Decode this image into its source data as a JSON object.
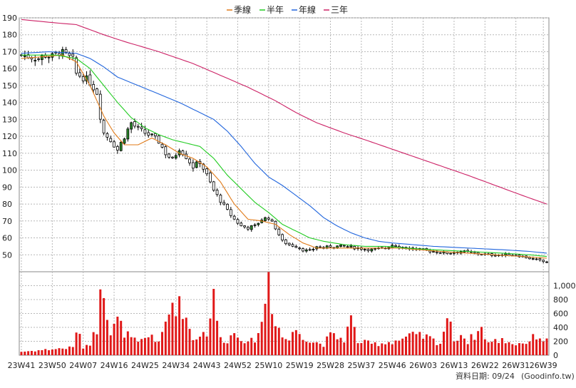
{
  "legend": [
    {
      "name": "季線",
      "color": "#e07b1a"
    },
    {
      "name": "半年",
      "color": "#22cc22"
    },
    {
      "name": "年線",
      "color": "#2266dd"
    },
    {
      "name": "三年",
      "color": "#cc2266"
    }
  ],
  "footer": {
    "date_label": "資料日期: 09/24",
    "source": "(Goodinfo.tw)"
  },
  "chart_data": {
    "type": "candlestick_with_volume",
    "price_axis": {
      "ylim": [
        40,
        190
      ],
      "ticks": [
        50,
        60,
        70,
        80,
        90,
        100,
        110,
        120,
        130,
        140,
        150,
        160,
        170,
        180,
        190
      ]
    },
    "volume_axis": {
      "ylim": [
        0,
        1200
      ],
      "ticks": [
        0,
        200,
        400,
        600,
        800,
        1000
      ],
      "tick_labels": [
        "0",
        "200",
        "400",
        "600",
        "800",
        "1,000"
      ]
    },
    "x_labels": [
      {
        "label": "23W41",
        "week": 0
      },
      {
        "label": "23W50",
        "week": 9
      },
      {
        "label": "24W07",
        "week": 18
      },
      {
        "label": "24W16",
        "week": 27
      },
      {
        "label": "24W25",
        "week": 36
      },
      {
        "label": "24W34",
        "week": 45
      },
      {
        "label": "24W43",
        "week": 54
      },
      {
        "label": "24W52",
        "week": 63
      },
      {
        "label": "25W10",
        "week": 72
      },
      {
        "label": "25W19",
        "week": 81
      },
      {
        "label": "25W28",
        "week": 90
      },
      {
        "label": "25W37",
        "week": 99
      },
      {
        "label": "25W46",
        "week": 108
      },
      {
        "label": "26W03",
        "week": 117
      },
      {
        "label": "26W13",
        "week": 126
      },
      {
        "label": "26W22",
        "week": 135
      },
      {
        "label": "26W31",
        "week": 144
      },
      {
        "label": "26W39",
        "week": 152
      }
    ],
    "weeks": 154,
    "close_anchors": [
      [
        0,
        168
      ],
      [
        3,
        167
      ],
      [
        5,
        166
      ],
      [
        7,
        168
      ],
      [
        9,
        167
      ],
      [
        11,
        170
      ],
      [
        13,
        168
      ],
      [
        15,
        165
      ],
      [
        16,
        157
      ],
      [
        18,
        155
      ],
      [
        20,
        152
      ],
      [
        22,
        146
      ],
      [
        23,
        132
      ],
      [
        24,
        122
      ],
      [
        26,
        118
      ],
      [
        28,
        112
      ],
      [
        30,
        120
      ],
      [
        32,
        128
      ],
      [
        34,
        124
      ],
      [
        36,
        122
      ],
      [
        38,
        120
      ],
      [
        40,
        117
      ],
      [
        42,
        110
      ],
      [
        44,
        106
      ],
      [
        46,
        113
      ],
      [
        48,
        108
      ],
      [
        50,
        102
      ],
      [
        52,
        105
      ],
      [
        54,
        97
      ],
      [
        56,
        88
      ],
      [
        58,
        82
      ],
      [
        60,
        76
      ],
      [
        62,
        71
      ],
      [
        64,
        67
      ],
      [
        66,
        66
      ],
      [
        68,
        67
      ],
      [
        70,
        71
      ],
      [
        72,
        72
      ],
      [
        74,
        66
      ],
      [
        76,
        58
      ],
      [
        78,
        56
      ],
      [
        80,
        55
      ],
      [
        82,
        53
      ],
      [
        84,
        52
      ],
      [
        86,
        55
      ],
      [
        88,
        54
      ],
      [
        90,
        55
      ],
      [
        94,
        55
      ],
      [
        98,
        54
      ],
      [
        102,
        53
      ],
      [
        106,
        54
      ],
      [
        108,
        56
      ],
      [
        112,
        54
      ],
      [
        116,
        53
      ],
      [
        120,
        52
      ],
      [
        124,
        51
      ],
      [
        128,
        52
      ],
      [
        132,
        51
      ],
      [
        136,
        50
      ],
      [
        140,
        50
      ],
      [
        144,
        50
      ],
      [
        148,
        48
      ],
      [
        152,
        46
      ],
      [
        153,
        46
      ]
    ],
    "volume_anchors": [
      [
        0,
        50
      ],
      [
        10,
        90
      ],
      [
        15,
        110
      ],
      [
        16,
        380
      ],
      [
        18,
        120
      ],
      [
        20,
        180
      ],
      [
        22,
        380
      ],
      [
        23,
        1150
      ],
      [
        24,
        1050
      ],
      [
        25,
        620
      ],
      [
        26,
        300
      ],
      [
        28,
        500
      ],
      [
        30,
        330
      ],
      [
        32,
        240
      ],
      [
        34,
        170
      ],
      [
        36,
        230
      ],
      [
        38,
        300
      ],
      [
        40,
        160
      ],
      [
        44,
        760
      ],
      [
        47,
        680
      ],
      [
        50,
        230
      ],
      [
        52,
        300
      ],
      [
        54,
        330
      ],
      [
        56,
        820
      ],
      [
        58,
        230
      ],
      [
        60,
        220
      ],
      [
        62,
        320
      ],
      [
        64,
        270
      ],
      [
        66,
        160
      ],
      [
        68,
        240
      ],
      [
        70,
        440
      ],
      [
        72,
        1180
      ],
      [
        73,
        720
      ],
      [
        74,
        520
      ],
      [
        76,
        260
      ],
      [
        78,
        220
      ],
      [
        80,
        380
      ],
      [
        84,
        200
      ],
      [
        88,
        160
      ],
      [
        90,
        280
      ],
      [
        94,
        230
      ],
      [
        96,
        520
      ],
      [
        98,
        200
      ],
      [
        102,
        160
      ],
      [
        106,
        180
      ],
      [
        110,
        220
      ],
      [
        114,
        280
      ],
      [
        118,
        260
      ],
      [
        122,
        170
      ],
      [
        124,
        560
      ],
      [
        126,
        230
      ],
      [
        128,
        300
      ],
      [
        130,
        200
      ],
      [
        134,
        380
      ],
      [
        136,
        180
      ],
      [
        140,
        220
      ],
      [
        144,
        160
      ],
      [
        148,
        200
      ],
      [
        150,
        290
      ],
      [
        153,
        200
      ]
    ],
    "ma_lines": [
      {
        "name": "季線",
        "color": "#e07b1a",
        "points": [
          [
            0,
            166
          ],
          [
            6,
            167
          ],
          [
            12,
            168
          ],
          [
            16,
            164
          ],
          [
            20,
            150
          ],
          [
            24,
            132
          ],
          [
            27,
            122
          ],
          [
            30,
            115
          ],
          [
            34,
            115
          ],
          [
            38,
            119
          ],
          [
            42,
            115
          ],
          [
            46,
            110
          ],
          [
            50,
            107
          ],
          [
            54,
            102
          ],
          [
            58,
            93
          ],
          [
            62,
            80
          ],
          [
            66,
            71
          ],
          [
            70,
            70
          ],
          [
            74,
            68
          ],
          [
            78,
            62
          ],
          [
            82,
            57
          ],
          [
            86,
            54
          ],
          [
            90,
            54
          ],
          [
            94,
            54
          ],
          [
            98,
            54
          ],
          [
            104,
            54
          ],
          [
            110,
            54
          ],
          [
            116,
            53
          ],
          [
            122,
            52
          ],
          [
            130,
            51
          ],
          [
            138,
            50
          ],
          [
            146,
            49
          ],
          [
            153,
            48
          ]
        ]
      },
      {
        "name": "半年",
        "color": "#22cc22",
        "points": [
          [
            0,
            168
          ],
          [
            10,
            168
          ],
          [
            16,
            166
          ],
          [
            20,
            160
          ],
          [
            24,
            150
          ],
          [
            28,
            140
          ],
          [
            32,
            131
          ],
          [
            36,
            125
          ],
          [
            40,
            121
          ],
          [
            44,
            118
          ],
          [
            48,
            116
          ],
          [
            52,
            114
          ],
          [
            56,
            107
          ],
          [
            60,
            97
          ],
          [
            64,
            89
          ],
          [
            68,
            81
          ],
          [
            72,
            75
          ],
          [
            76,
            68
          ],
          [
            80,
            64
          ],
          [
            84,
            60
          ],
          [
            88,
            58
          ],
          [
            94,
            56
          ],
          [
            100,
            55
          ],
          [
            106,
            55
          ],
          [
            112,
            54
          ],
          [
            120,
            53
          ],
          [
            130,
            52
          ],
          [
            140,
            51
          ],
          [
            148,
            50
          ],
          [
            153,
            49
          ]
        ]
      },
      {
        "name": "年線",
        "color": "#2266dd",
        "points": [
          [
            0,
            169
          ],
          [
            8,
            170
          ],
          [
            16,
            169
          ],
          [
            20,
            166
          ],
          [
            24,
            161
          ],
          [
            28,
            155
          ],
          [
            34,
            150
          ],
          [
            40,
            145
          ],
          [
            46,
            140
          ],
          [
            52,
            134
          ],
          [
            56,
            130
          ],
          [
            60,
            123
          ],
          [
            64,
            114
          ],
          [
            68,
            104
          ],
          [
            72,
            96
          ],
          [
            76,
            91
          ],
          [
            80,
            85
          ],
          [
            84,
            79
          ],
          [
            88,
            72
          ],
          [
            92,
            67
          ],
          [
            96,
            63
          ],
          [
            100,
            60
          ],
          [
            104,
            58
          ],
          [
            108,
            57
          ],
          [
            114,
            56
          ],
          [
            120,
            55
          ],
          [
            130,
            54
          ],
          [
            140,
            53
          ],
          [
            148,
            52
          ],
          [
            153,
            51
          ]
        ]
      },
      {
        "name": "三年",
        "color": "#cc2266",
        "points": [
          [
            0,
            189
          ],
          [
            10,
            187
          ],
          [
            16,
            186
          ],
          [
            20,
            183
          ],
          [
            24,
            180
          ],
          [
            30,
            176
          ],
          [
            40,
            170
          ],
          [
            50,
            163
          ],
          [
            58,
            156
          ],
          [
            66,
            149
          ],
          [
            74,
            141
          ],
          [
            80,
            134
          ],
          [
            86,
            128
          ],
          [
            94,
            122
          ],
          [
            100,
            118
          ],
          [
            110,
            111
          ],
          [
            120,
            104
          ],
          [
            130,
            97
          ],
          [
            138,
            91
          ],
          [
            146,
            85
          ],
          [
            153,
            80
          ]
        ]
      }
    ]
  }
}
